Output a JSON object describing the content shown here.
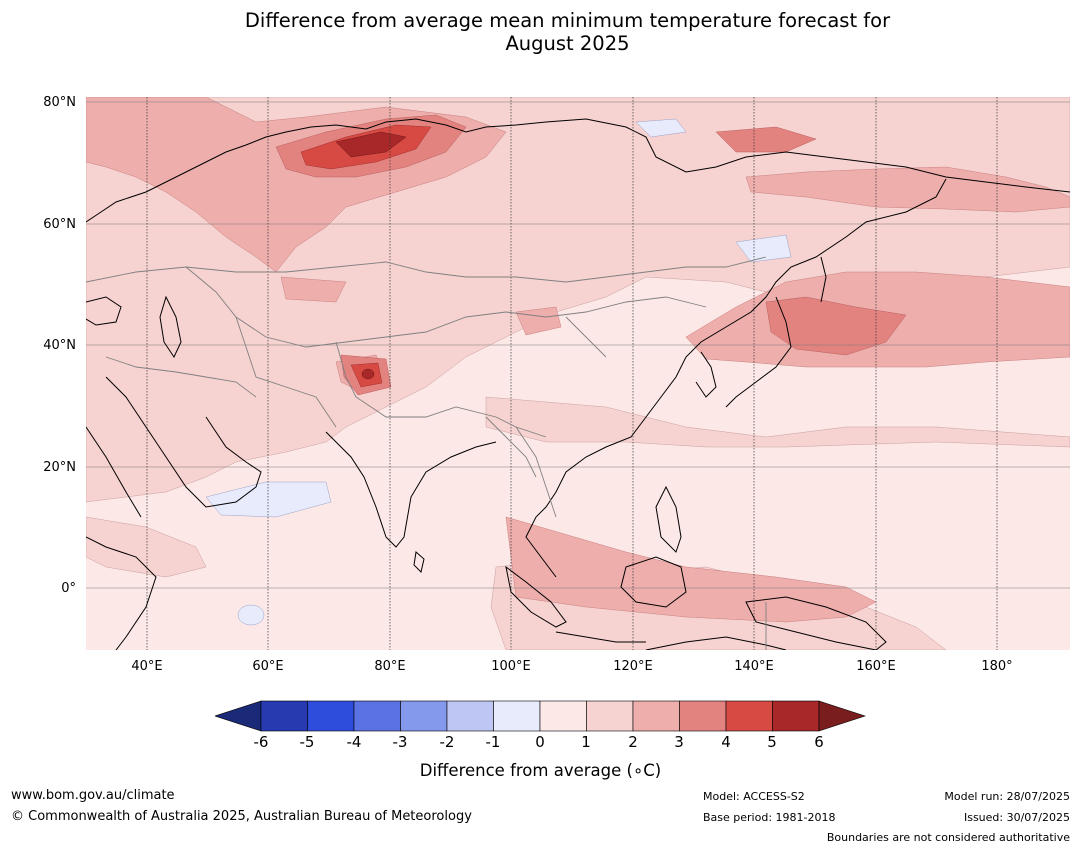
{
  "title_line1": "Difference from average mean minimum temperature forecast for",
  "title_line2": "August 2025",
  "map": {
    "lat_labels": [
      "80°N",
      "60°N",
      "40°N",
      "20°N",
      "0°"
    ],
    "lon_labels": [
      "40°E",
      "60°E",
      "80°E",
      "100°E",
      "120°E",
      "140°E",
      "160°E",
      "180°"
    ],
    "extent": {
      "lon": [
        30,
        192
      ],
      "lat": [
        -10,
        81
      ]
    }
  },
  "colorbar": {
    "ticks": [
      "-6",
      "-5",
      "-4",
      "-3",
      "-2",
      "-1",
      "0",
      "1",
      "2",
      "3",
      "4",
      "5",
      "6"
    ],
    "colors": [
      "#1a2a78",
      "#283ab0",
      "#2f4ddd",
      "#5b72e4",
      "#8499ec",
      "#bec6f3",
      "#e8ebfb",
      "#fce8e7",
      "#f6d2d0",
      "#edaeac",
      "#e38380",
      "#d74a43",
      "#a8282a",
      "#7a1d1e"
    ],
    "label": "Difference from average (∘C)"
  },
  "footer": {
    "website": "www.bom.gov.au/climate",
    "copyright": "© Commonwealth of Australia 2025, Australian Bureau of Meteorology",
    "model": "Model: ACCESS-S2",
    "base_period": "Base period: 1981-2018",
    "model_run": "Model run: 28/07/2025",
    "issued": "Issued: 30/07/2025",
    "disclaimer": "Boundaries are not considered authoritative"
  }
}
